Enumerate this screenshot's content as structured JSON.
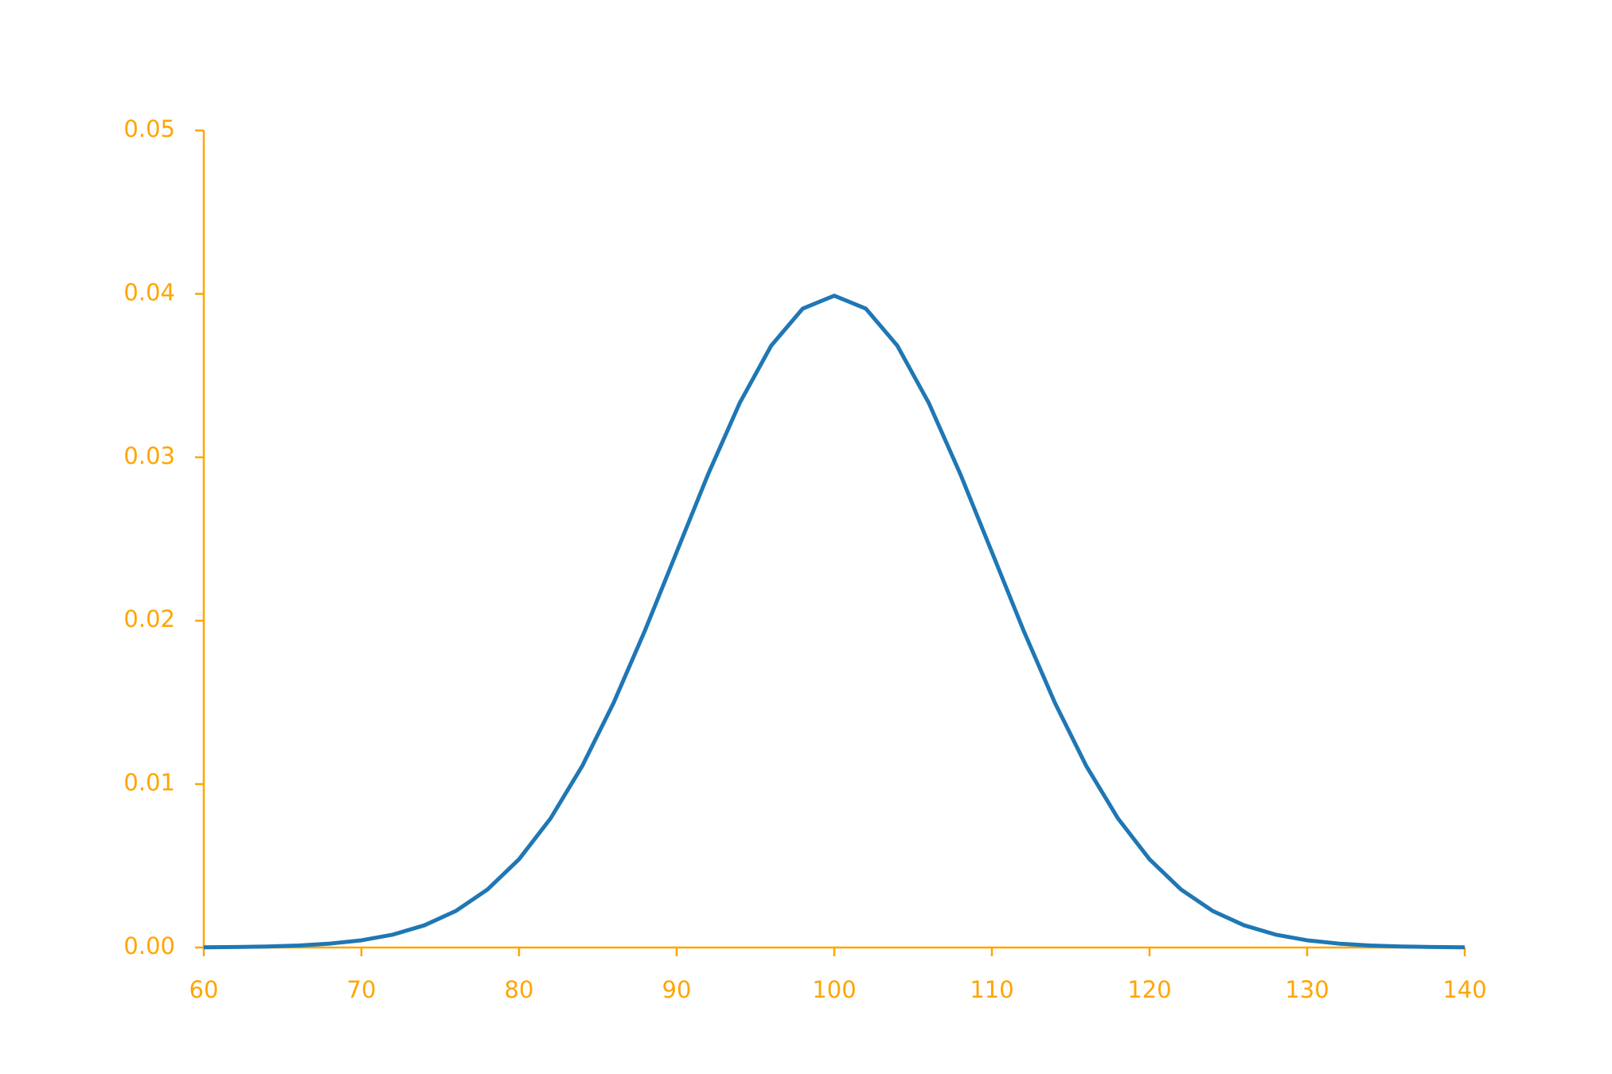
{
  "chart_data": {
    "type": "line",
    "x": [
      60,
      62,
      64,
      66,
      68,
      70,
      72,
      74,
      76,
      78,
      80,
      82,
      84,
      86,
      88,
      90,
      92,
      94,
      96,
      98,
      100,
      102,
      104,
      106,
      108,
      110,
      112,
      114,
      116,
      118,
      120,
      122,
      124,
      126,
      128,
      130,
      132,
      134,
      136,
      138,
      140
    ],
    "series": [
      {
        "color": "#1f77b4",
        "values": [
          1e-05,
          3e-05,
          6e-05,
          0.00012,
          0.00024,
          0.00044,
          0.00079,
          0.00136,
          0.00224,
          0.00355,
          0.0054,
          0.0079,
          0.01109,
          0.01497,
          0.01942,
          0.0242,
          0.02897,
          0.03332,
          0.03683,
          0.0391,
          0.03989,
          0.0391,
          0.03683,
          0.03332,
          0.02897,
          0.0242,
          0.01942,
          0.01497,
          0.01109,
          0.0079,
          0.0054,
          0.00355,
          0.00224,
          0.00136,
          0.00079,
          0.00044,
          0.00024,
          0.00012,
          6e-05,
          3e-05,
          1e-05
        ]
      }
    ],
    "axis_color": "#ffa500",
    "xlim": [
      60,
      140
    ],
    "xticks": [
      60,
      70,
      80,
      90,
      100,
      110,
      120,
      130,
      140
    ],
    "ylim": [
      0,
      0.05
    ],
    "yticks": [
      {
        "value": 0,
        "label": "0.00"
      },
      {
        "value": 0.01,
        "label": "0.01"
      },
      {
        "value": 0.02,
        "label": "0.02"
      },
      {
        "value": 0.03,
        "label": "0.03"
      },
      {
        "value": 0.04,
        "label": "0.04"
      },
      {
        "value": 0.05,
        "label": "0.05"
      }
    ],
    "grid": false
  }
}
